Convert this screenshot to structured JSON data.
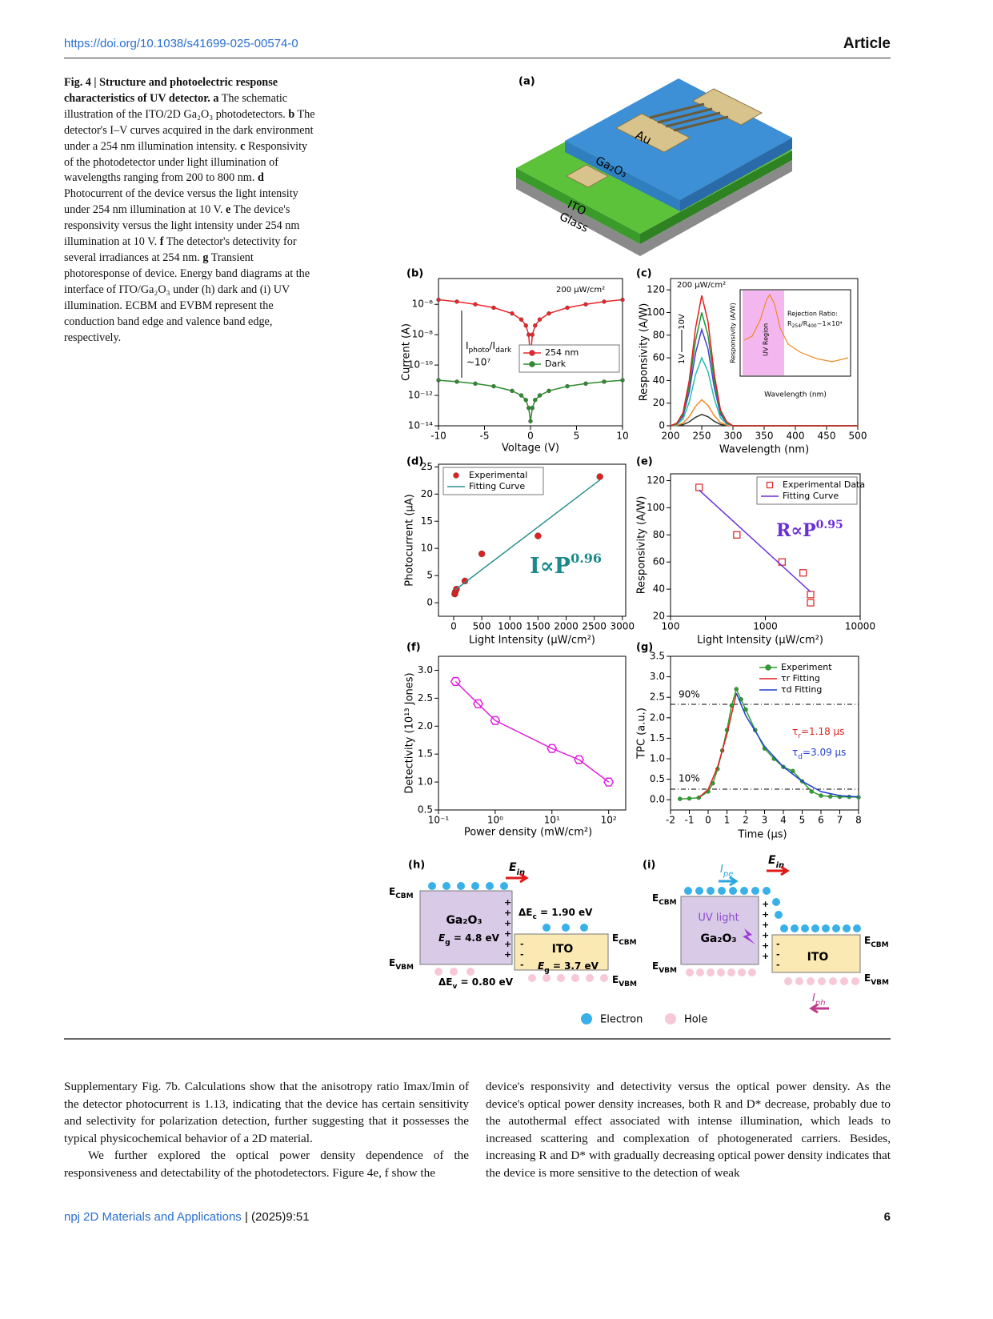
{
  "header": {
    "doi": "https://doi.org/10.1038/s41699-025-00574-0",
    "section": "Article"
  },
  "caption": {
    "title": "Fig. 4 | Structure and photoelectric response characteristics of UV detector.",
    "items": [
      {
        "label": "a",
        "text": "The schematic illustration of the ITO/2D Ga₂O₃ photodetectors."
      },
      {
        "label": "b",
        "text": "The detector's I–V curves acquired in the dark environment under a 254 nm illumination intensity."
      },
      {
        "label": "c",
        "text": "Responsivity of the photodetector under light illumination of wavelengths ranging from 200 to 800 nm."
      },
      {
        "label": "d",
        "text": "Photocurrent of the device versus the light intensity under 254 nm illumination at 10 V."
      },
      {
        "label": "e",
        "text": "The device's responsivity versus the light intensity under 254 nm illumination at 10 V."
      },
      {
        "label": "f",
        "text": "The detector's detectivity for several irradiances at 254 nm."
      },
      {
        "label": "g",
        "text": "Transient photoresponse of device. Energy band diagrams at the interface of ITO/Ga₂O₃ under (h) dark and (i) UV illumination. ECBM and EVBM represent the conduction band edge and valence band edge, respectively."
      }
    ]
  },
  "figure": {
    "a": {
      "label": "(a)",
      "layers": [
        "Au",
        "Ga₂O₃",
        "ITO",
        "Glass"
      ]
    },
    "h": {
      "label": "(h)",
      "e_in": [
        "E",
        "in"
      ],
      "ecbm": [
        "E",
        "CBM"
      ],
      "evbm": [
        "E",
        "VBM"
      ],
      "material": "Ga₂O₃",
      "eg1": [
        "E",
        "g",
        " = 4.8 eV"
      ],
      "dec": [
        "ΔE",
        "c",
        " = 1.90 eV"
      ],
      "ito": "ITO",
      "eg2": [
        "E",
        "g",
        " = 3.7 eV"
      ],
      "dev": [
        "ΔE",
        "v",
        " = 0.80 eV"
      ]
    },
    "i": {
      "label": "(i)",
      "ipe": [
        "I",
        "pe"
      ],
      "e_in": [
        "E",
        "in"
      ],
      "uv": "UV light",
      "material": "Ga₂O₃",
      "ito": "ITO",
      "iph": [
        "I",
        "ph"
      ]
    },
    "legend": [
      "Electron",
      "Hole"
    ]
  },
  "chart_data": [
    {
      "type": "line",
      "panel": "(b)",
      "xlabel": "Voltage (V)",
      "ylabel": "Current (A)",
      "yscale": "log",
      "xlim": [
        -10,
        10
      ],
      "ylim": [
        1e-14,
        5e-05
      ],
      "xticks": [
        -10,
        -5,
        0,
        5,
        10
      ],
      "yticks": [
        {
          "value": 1e-14,
          "label": "10⁻¹⁴"
        },
        {
          "value": 1e-12,
          "label": "10⁻¹²"
        },
        {
          "value": 1e-10,
          "label": "10⁻¹⁰"
        },
        {
          "value": 1e-08,
          "label": "10⁻⁸"
        },
        {
          "value": 1e-06,
          "label": "10⁻⁶"
        }
      ],
      "annotations": [
        "200 μW/cm²",
        "~10⁷"
      ],
      "ratio": [
        "I",
        "photo",
        "/I",
        "dark"
      ],
      "legend": "center right",
      "series": [
        {
          "name": "254 nm",
          "color": "#e8262a",
          "marker": "circle",
          "mode": "lines+markers",
          "x": [
            -10,
            -8,
            -6,
            -4,
            -2,
            -1,
            -0.5,
            -0.2,
            0,
            0.2,
            0.5,
            1,
            2,
            4,
            6,
            8,
            10
          ],
          "values": [
            2e-06,
            1.5e-06,
            1e-06,
            6e-07,
            2.5e-07,
            1e-07,
            4e-08,
            1e-08,
            3e-10,
            1e-08,
            4e-08,
            1e-07,
            2.5e-07,
            6e-07,
            1e-06,
            1.5e-06,
            2e-06
          ]
        },
        {
          "name": "Dark",
          "color": "#2e8b2e",
          "marker": "circle",
          "mode": "lines+markers",
          "x": [
            -10,
            -8,
            -6,
            -4,
            -2,
            -1,
            -0.5,
            -0.2,
            0,
            0.2,
            0.5,
            1,
            2,
            4,
            6,
            8,
            10
          ],
          "values": [
            1e-11,
            8e-12,
            6e-12,
            4e-12,
            2e-12,
            1e-12,
            5e-13,
            1.5e-13,
            2e-14,
            1.5e-13,
            5e-13,
            1e-12,
            2e-12,
            4e-12,
            6e-12,
            8e-12,
            1e-11
          ]
        }
      ]
    },
    {
      "type": "line",
      "panel": "(c)",
      "xlabel": "Wavelength (nm)",
      "ylabel": "Responsivity (A/W)",
      "xlim": [
        200,
        500
      ],
      "ylim": [
        0,
        130
      ],
      "xticks": [
        200,
        250,
        300,
        350,
        400,
        450,
        500
      ],
      "yticks": [
        0,
        20,
        40,
        60,
        80,
        100,
        120
      ],
      "annotations": [
        "200 μW/cm²",
        "1V",
        "10V"
      ],
      "inset": {
        "xlabel": "Wavelength (nm)",
        "ylabel": "Responsivity (A/W)",
        "region": "UV Region",
        "note": "Rejection Ratio:",
        "ratio": [
          "R",
          "254",
          "/R",
          "400",
          "~1×10⁴"
        ]
      },
      "x": [
        200,
        210,
        220,
        230,
        240,
        250,
        260,
        270,
        280,
        290,
        300,
        350,
        400,
        450,
        500
      ],
      "series": [
        {
          "color": "#333333",
          "mode": "line",
          "values": [
            0,
            0.2,
            1,
            3.5,
            7.5,
            10,
            8,
            4,
            1.2,
            0.3,
            0,
            0,
            0,
            0,
            0
          ]
        },
        {
          "color": "#f08a24",
          "mode": "line",
          "values": [
            0,
            0.5,
            2.3,
            8,
            17,
            23,
            18,
            9,
            2.8,
            0.7,
            0,
            0,
            0,
            0,
            0
          ]
        },
        {
          "color": "#20c0b0",
          "mode": "line",
          "values": [
            0,
            1.2,
            6,
            21,
            45,
            60,
            48,
            24,
            7,
            1.8,
            0,
            0,
            0,
            0,
            0
          ]
        },
        {
          "color": "#4b3fd1",
          "mode": "line",
          "values": [
            0,
            1.7,
            8.5,
            30,
            64,
            85,
            68,
            34,
            10,
            2.5,
            0,
            0,
            0,
            0,
            0
          ]
        },
        {
          "color": "#1a9a3a",
          "mode": "line",
          "values": [
            0,
            2,
            10,
            35,
            75,
            100,
            80,
            40,
            12,
            3,
            0,
            0,
            0,
            0,
            0
          ]
        },
        {
          "color": "#e32020",
          "mode": "line",
          "values": [
            0,
            2.3,
            11.5,
            40,
            86,
            115,
            92,
            46,
            14,
            3.5,
            0,
            0,
            0,
            0,
            0
          ]
        }
      ]
    },
    {
      "type": "scatter",
      "panel": "(d)",
      "xlabel": "Light Intensity (μW/cm²)",
      "ylabel": "Photocurrent (μA)",
      "xlim": [
        -270,
        3060
      ],
      "ylim": [
        -2.5,
        25.5
      ],
      "xticks": [
        0,
        500,
        1000,
        1500,
        2000,
        2500,
        3000
      ],
      "yticks": [
        0,
        5,
        10,
        15,
        20,
        25
      ],
      "fit_label": [
        "I∝P",
        "0.96"
      ],
      "legend": "upper left",
      "series": [
        {
          "name": "Experimental",
          "color": "#e02020",
          "marker": "circle",
          "mode": "markers",
          "x": [
            20,
            30,
            50,
            200,
            500,
            1500,
            2600
          ],
          "values": [
            1.6,
            2.0,
            2.5,
            4.0,
            9,
            12.3,
            23.2
          ]
        },
        {
          "name": "Fitting Curve",
          "color": "#2a8f8f",
          "mode": "line",
          "x": [
            20,
            2600
          ],
          "values": [
            2.3,
            22.6
          ]
        }
      ]
    },
    {
      "type": "scatter",
      "panel": "(e)",
      "xlabel": "Light Intensity (μW/cm²)",
      "ylabel": "Responsivity (A/W)",
      "xscale": "log",
      "xlim": [
        100,
        10000
      ],
      "ylim": [
        20,
        125
      ],
      "xticks": [
        100,
        1000,
        10000
      ],
      "yticks": [
        20,
        40,
        60,
        80,
        100,
        120
      ],
      "fit_label": [
        "R∝P",
        "0.95"
      ],
      "legend": "upper right",
      "series": [
        {
          "name": "Experimental Data",
          "color": "#e03030",
          "marker": "square",
          "mode": "markers",
          "x": [
            200,
            500,
            1500,
            2500,
            3000,
            3000
          ],
          "values": [
            115,
            80,
            60,
            52,
            36,
            30
          ]
        },
        {
          "name": "Fitting Curve",
          "color": "#6a2fd8",
          "mode": "line",
          "x": [
            200,
            3000
          ],
          "values": [
            113,
            38
          ]
        }
      ]
    },
    {
      "type": "line",
      "panel": "(f)",
      "xlabel": "Power density (mW/cm²)",
      "ylabel": "Detectivity (10¹³ Jones)",
      "xscale": "log",
      "xlim": [
        0.1,
        200
      ],
      "ylim": [
        0.5,
        3.25
      ],
      "xticks": [
        {
          "value": 0.1,
          "label": "10⁻¹"
        },
        {
          "value": 1,
          "label": "10⁰"
        },
        {
          "value": 10,
          "label": "10¹"
        },
        {
          "value": 100,
          "label": "10²"
        }
      ],
      "yticks": [
        0.5,
        {
          "value": 1,
          "label": "1.0"
        },
        1.5,
        {
          "value": 2,
          "label": "2.0"
        },
        2.5,
        {
          "value": 3,
          "label": "3.0"
        }
      ],
      "series": [
        {
          "color": "#e020e0",
          "marker": "hexagon",
          "mode": "lines+markers",
          "x": [
            0.2,
            0.5,
            1,
            10,
            30,
            100
          ],
          "values": [
            2.8,
            2.4,
            2.1,
            1.6,
            1.4,
            1.0
          ]
        }
      ]
    },
    {
      "type": "line",
      "panel": "(g)",
      "xlabel": "Time (μs)",
      "ylabel": "TPC (a.u.)",
      "xlim": [
        -2,
        8
      ],
      "ylim": [
        -0.25,
        3.5
      ],
      "xticks": [
        -2,
        -1,
        0,
        1,
        2,
        3,
        4,
        5,
        6,
        7,
        8
      ],
      "yticks": [
        {
          "value": 0,
          "label": "0.0"
        },
        0.5,
        {
          "value": 1,
          "label": "1.0"
        },
        1.5,
        {
          "value": 2,
          "label": "2.0"
        },
        2.5,
        {
          "value": 3,
          "label": "3.0"
        },
        3.5
      ],
      "annotations": [
        "90%",
        "10%"
      ],
      "tau_r": [
        "τ",
        "r",
        "=1.18 μs"
      ],
      "tau_d": [
        "τ",
        "d",
        "=3.09 μs"
      ],
      "legend": "upper right",
      "series": [
        {
          "name": "Experiment",
          "color": "#2ca02c",
          "marker": "circle",
          "mode": "lines+markers",
          "x": [
            -1.5,
            -1,
            -0.5,
            0,
            0.25,
            0.5,
            0.75,
            1,
            1.25,
            1.5,
            1.75,
            2,
            2.5,
            3,
            3.5,
            4,
            4.5,
            5,
            5.5,
            6,
            6.5,
            7,
            7.5,
            8
          ],
          "values": [
            0.02,
            0.03,
            0.05,
            0.2,
            0.4,
            0.75,
            1.2,
            1.7,
            2.3,
            2.7,
            2.45,
            2.2,
            1.7,
            1.25,
            1.0,
            0.8,
            0.7,
            0.45,
            0.2,
            0.1,
            0.08,
            0.07,
            0.07,
            0.06
          ]
        },
        {
          "name": "τr Fitting",
          "color": "#e02020",
          "mode": "line",
          "x": [
            -0.5,
            0,
            0.5,
            1,
            1.5
          ],
          "values": [
            0.05,
            0.25,
            0.8,
            1.6,
            2.6
          ]
        },
        {
          "name": "τd Fitting",
          "color": "#1f3fd0",
          "mode": "line",
          "x": [
            1.5,
            2,
            3,
            4,
            5,
            6,
            7,
            8
          ],
          "values": [
            2.6,
            2.05,
            1.3,
            0.8,
            0.45,
            0.2,
            0.1,
            0.07
          ]
        }
      ]
    }
  ],
  "body": {
    "left": [
      "Supplementary Fig. 7b. Calculations show that the anisotropy ratio Imax/Imin of the detector photocurrent is 1.13, indicating that the device has certain sensitivity and selectivity for polarization detection, further suggesting that it possesses the typical physicochemical behavior of a 2D material.",
      "We further explored the optical power density dependence of the responsiveness and detectability of the photodetectors. Figure 4e, f show the"
    ],
    "right": [
      "device's responsivity and detectivity versus the optical power density. As the device's optical power density increases, both R and D* decrease, probably due to the autothermal effect associated with intense illumination, which leads to increased scattering and complexation of photogenerated carriers. Besides, increasing R and D* with gradually decreasing optical power density indicates that the device is more sensitive to the detection of weak"
    ]
  },
  "footer": {
    "journal": "npj 2D Materials and Applications",
    "citation": "| (2025)9:51",
    "page": "6"
  }
}
